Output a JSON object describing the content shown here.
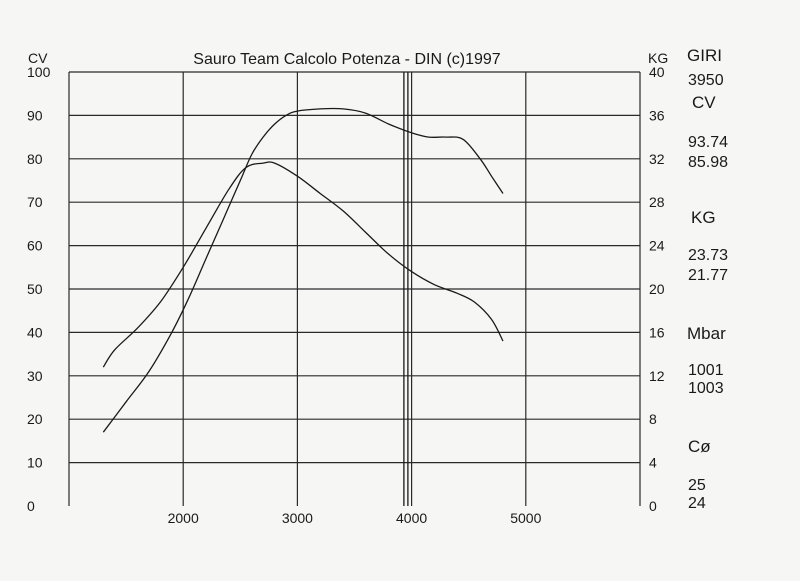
{
  "chart_data": {
    "type": "line",
    "title": "Sauro Team Calcolo Potenza - DIN  (c)1997",
    "left_axis_label": "CV",
    "right_axis_label": "KG",
    "xlim": [
      1000,
      6000
    ],
    "x_ticks": [
      2000,
      3000,
      4000,
      5000
    ],
    "ylim_left": [
      0,
      100
    ],
    "y_ticks_left": [
      0,
      10,
      20,
      30,
      40,
      50,
      60,
      70,
      80,
      90,
      100
    ],
    "ylim_right": [
      0,
      40
    ],
    "y_ticks_right": [
      0,
      4,
      8,
      12,
      16,
      20,
      24,
      28,
      32,
      36,
      40
    ],
    "grid": true,
    "marker_rpm": 3950,
    "series": [
      {
        "axis": "left",
        "x": [
          1300,
          1500,
          1700,
          1900,
          2050,
          2200,
          2350,
          2500,
          2600,
          2700,
          2800,
          2900,
          3000,
          3200,
          3400,
          3600,
          3800,
          4000,
          4150,
          4300,
          4450,
          4600,
          4700,
          4800
        ],
        "values": [
          17,
          24,
          31,
          40,
          48,
          57,
          66,
          75,
          81,
          85,
          88,
          90,
          91,
          91.5,
          91.5,
          90.5,
          88,
          86,
          85,
          85,
          84.5,
          80,
          76,
          72
        ]
      },
      {
        "axis": "left",
        "x": [
          1300,
          1400,
          1600,
          1800,
          2000,
          2200,
          2400,
          2550,
          2700,
          2800,
          3000,
          3200,
          3400,
          3600,
          3800,
          4000,
          4200,
          4400,
          4550,
          4700,
          4800
        ],
        "values": [
          32,
          36,
          41,
          47,
          55,
          64,
          73,
          78,
          79,
          79,
          76,
          72,
          68,
          63,
          58,
          54,
          51,
          49,
          47,
          43,
          38
        ]
      }
    ]
  },
  "side_panel": {
    "rpm_label": "GIRI",
    "rpm_value": "3950",
    "cv_label": "CV",
    "cv_value_1": "93.74",
    "cv_value_2": "85.98",
    "kg_label": "KG",
    "kg_value_1": "23.73",
    "kg_value_2": "21.77",
    "mbar_label": "Mbar",
    "mbar_value_1": "1001",
    "mbar_value_2": "1003",
    "temp_label": "Cø",
    "temp_value_1": "25",
    "temp_value_2": "24"
  },
  "colors": {
    "ink": "#1a1a1a",
    "grid": "#2a2a2a",
    "paper": "#f6f6f4"
  }
}
